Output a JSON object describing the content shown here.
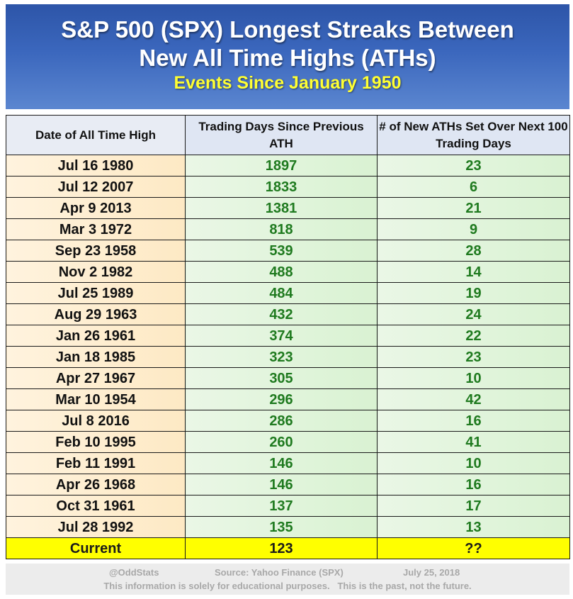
{
  "header": {
    "title_line1": "S&P 500 (SPX) Longest Streaks Between",
    "title_line2": "New All Time Highs (ATHs)",
    "subtitle": "Events Since January 1950"
  },
  "table": {
    "columns": [
      "Date of All Time High",
      "Trading Days Since Previous ATH",
      "# of New ATHs Set Over Next 100 Trading Days"
    ],
    "rows": [
      [
        "Jul 16 1980",
        "1897",
        "23"
      ],
      [
        "Jul 12 2007",
        "1833",
        "6"
      ],
      [
        "Apr 9 2013",
        "1381",
        "21"
      ],
      [
        "Mar 3 1972",
        "818",
        "9"
      ],
      [
        "Sep 23 1958",
        "539",
        "28"
      ],
      [
        "Nov 2 1982",
        "488",
        "14"
      ],
      [
        "Jul 25 1989",
        "484",
        "19"
      ],
      [
        "Aug 29 1963",
        "432",
        "24"
      ],
      [
        "Jan 26 1961",
        "374",
        "22"
      ],
      [
        "Jan 18 1985",
        "323",
        "23"
      ],
      [
        "Apr 27 1967",
        "305",
        "10"
      ],
      [
        "Mar 10 1954",
        "296",
        "42"
      ],
      [
        "Jul 8 2016",
        "286",
        "16"
      ],
      [
        "Feb 10 1995",
        "260",
        "41"
      ],
      [
        "Feb 11 1991",
        "146",
        "10"
      ],
      [
        "Apr 26 1968",
        "146",
        "16"
      ],
      [
        "Oct 31 1961",
        "137",
        "17"
      ],
      [
        "Jul 28 1992",
        "135",
        "13"
      ]
    ],
    "current_row": [
      "Current",
      "123",
      "??"
    ]
  },
  "footer": {
    "handle": "@OddStats",
    "source": "Source: Yahoo Finance (SPX)",
    "date": "July 25, 2018",
    "disclaimer": "This information is solely for educational purposes.   This is the past, not the future."
  },
  "colors": {
    "header_blue": "#3b67bd",
    "subtitle_yellow": "#ffff33",
    "value_green": "#1f7a1f",
    "current_highlight": "#ffff00"
  }
}
